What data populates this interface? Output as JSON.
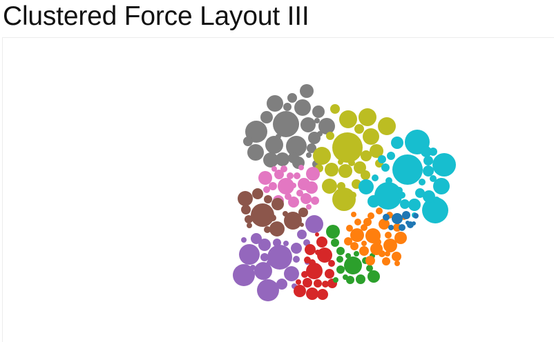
{
  "page": {
    "title": "Clustered Force Layout III"
  },
  "diagram": {
    "type": "clustered-bubble-force-layout",
    "cluster_count": 10,
    "clusters": [
      {
        "name": "gray",
        "color": "#7f7f7f"
      },
      {
        "name": "olive",
        "color": "#bcbd22"
      },
      {
        "name": "cyan",
        "color": "#17becf"
      },
      {
        "name": "pink",
        "color": "#e377c2"
      },
      {
        "name": "brown",
        "color": "#8c564b"
      },
      {
        "name": "purple",
        "color": "#9467bd"
      },
      {
        "name": "red",
        "color": "#d62728"
      },
      {
        "name": "green",
        "color": "#2ca02c"
      },
      {
        "name": "orange",
        "color": "#ff7f0e"
      },
      {
        "name": "blue",
        "color": "#1f77b4"
      }
    ]
  }
}
